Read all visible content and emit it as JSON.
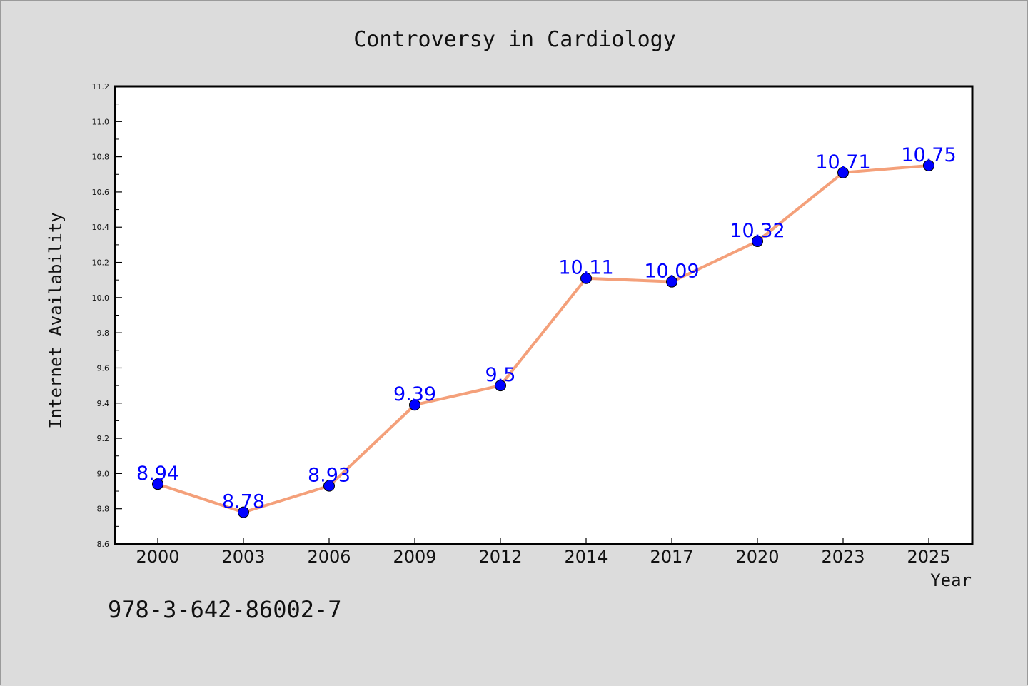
{
  "chart_data": {
    "type": "line",
    "title": "Controversy in Cardiology",
    "xlabel": "Year",
    "ylabel": "Internet Availability",
    "categories": [
      "2000",
      "2003",
      "2006",
      "2009",
      "2012",
      "2014",
      "2017",
      "2020",
      "2023",
      "2025"
    ],
    "series": [
      {
        "values": [
          8.94,
          8.78,
          8.93,
          9.39,
          9.5,
          10.11,
          10.09,
          10.32,
          10.71,
          10.75
        ],
        "labels": [
          "8.94",
          "8.78",
          "8.93",
          "9.39",
          "9.5",
          "10.11",
          "10.09",
          "10.32",
          "10.71",
          "10.75"
        ]
      }
    ],
    "ylim": [
      8.6,
      11.2
    ],
    "yticks": [
      "8.6",
      "8.8",
      "9.0",
      "9.2",
      "9.4",
      "9.6",
      "9.8",
      "10.0",
      "10.2",
      "10.4",
      "10.6",
      "10.8",
      "11.0",
      "11.2"
    ],
    "grid": false,
    "line_color": "#f4a07a",
    "marker_color": "#0000ff",
    "label_color": "#0000ff",
    "background_color": "#dcdcdc",
    "plot_background": "#ffffff"
  },
  "footer_code": "978-3-642-86002-7"
}
